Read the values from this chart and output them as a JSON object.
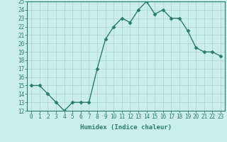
{
  "x": [
    0,
    1,
    2,
    3,
    4,
    5,
    6,
    7,
    8,
    9,
    10,
    11,
    12,
    13,
    14,
    15,
    16,
    17,
    18,
    19,
    20,
    21,
    22,
    23
  ],
  "y": [
    15,
    15,
    14,
    13,
    12,
    13,
    13,
    13,
    17,
    20.5,
    22,
    23,
    22.5,
    24,
    25,
    23.5,
    24,
    23,
    23,
    21.5,
    19.5,
    19,
    19,
    18.5
  ],
  "line_color": "#2d7d6f",
  "marker": "D",
  "marker_size": 2.5,
  "bg_color": "#caeee8",
  "grid_color": "#aed4ce",
  "xlabel": "Humidex (Indice chaleur)",
  "ylim": [
    12,
    25
  ],
  "xlim_min": -0.5,
  "xlim_max": 23.5,
  "yticks": [
    12,
    13,
    14,
    15,
    16,
    17,
    18,
    19,
    20,
    21,
    22,
    23,
    24,
    25
  ],
  "xticks": [
    0,
    1,
    2,
    3,
    4,
    5,
    6,
    7,
    8,
    9,
    10,
    11,
    12,
    13,
    14,
    15,
    16,
    17,
    18,
    19,
    20,
    21,
    22,
    23
  ],
  "tick_color": "#2d7d6f",
  "label_fontsize": 5.5,
  "xlabel_fontsize": 6.5,
  "line_width": 1.0,
  "spine_color": "#2d7d6f"
}
